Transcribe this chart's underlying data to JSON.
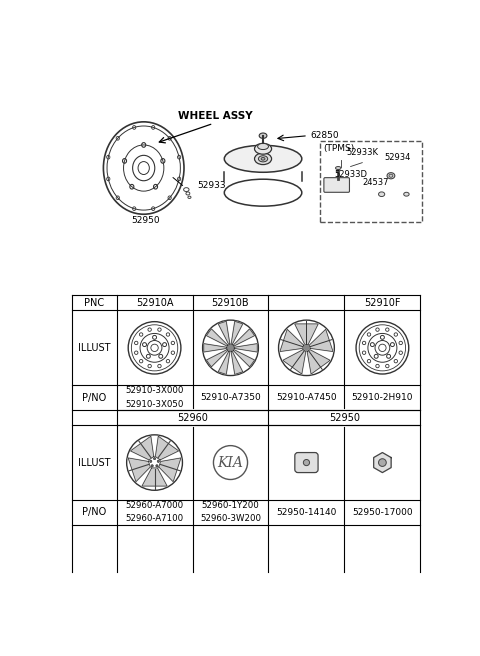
{
  "bg_color": "#ffffff",
  "wheel_assy_label": "WHEEL ASSY",
  "top_parts": [
    "62850",
    "52933",
    "52950"
  ],
  "tpms_label": "(TPMS)",
  "tpms_parts": [
    "52933K",
    "52933D",
    "52934",
    "24537"
  ],
  "table": {
    "pnc_header": "PNC",
    "row0_headers": [
      "52910A",
      "52910B",
      "52910F"
    ],
    "row0_pno": [
      "52910-3X000\n52910-3X050",
      "52910-A7350",
      "52910-A7450",
      "52910-2H910"
    ],
    "row1_group": [
      "52960",
      "52950"
    ],
    "row1_pno": [
      "52960-A7000\n52960-A7100",
      "52960-1Y200\n52960-3W200",
      "52950-14140",
      "52950-17000"
    ],
    "illust": "ILLUST",
    "pno": "P/NO"
  }
}
